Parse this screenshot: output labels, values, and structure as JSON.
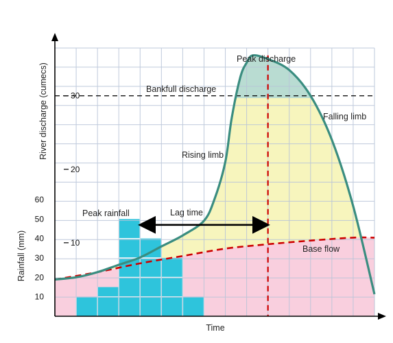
{
  "chart_data": {
    "type": "area",
    "xlabel": "Time",
    "ylabel_discharge": "River discharge (cumecs)",
    "ylabel_rainfall": "Rainfall (mm)",
    "discharge_ticks": [
      "10",
      "20",
      "30"
    ],
    "rainfall_ticks": [
      "10",
      "20",
      "30",
      "40",
      "50",
      "60"
    ],
    "x_range": [
      0,
      15
    ],
    "rainfall_ylim": [
      0,
      60
    ],
    "discharge_ylim": [
      0,
      36.5
    ],
    "grid": true,
    "rainfall": {
      "type": "bar",
      "x": [
        1,
        2,
        3,
        4,
        5,
        6,
        7
      ],
      "values": [
        10,
        15,
        50,
        40,
        30,
        10,
        0
      ]
    },
    "discharge": {
      "type": "line",
      "x": [
        0,
        1,
        2,
        3,
        4,
        5,
        6,
        7,
        7.5,
        8,
        8.3,
        8.7,
        9,
        9.3,
        10,
        11,
        12,
        13,
        14,
        15
      ],
      "values": [
        5,
        5.3,
        6,
        7,
        8,
        9.5,
        11,
        13,
        16,
        21,
        27,
        32.5,
        34.5,
        35.5,
        35,
        33.5,
        30,
        24,
        15,
        3
      ]
    },
    "base_flow": {
      "x": [
        0,
        2,
        4,
        6,
        8,
        10,
        12,
        14,
        15
      ],
      "values": [
        5,
        6,
        7.2,
        8.2,
        9.2,
        9.8,
        10.3,
        10.7,
        10.7
      ]
    },
    "bankfull_value": 30,
    "peak_x": 10,
    "lag_from_x": 4,
    "lag_to_x": 10,
    "annotations": {
      "peak_discharge": "Peak discharge",
      "bankfull": "Bankfull discharge",
      "falling_limb": "Falling limb",
      "rising_limb": "Rising limb",
      "peak_rainfall": "Peak rainfall",
      "lag_time": "Lag time",
      "base_flow": "Base flow"
    },
    "colors": {
      "rain_bar": "#2ec4dc",
      "base_flow_fill": "#f9cfde",
      "storm_fill": "#f7f5bd",
      "above_bankfull_fill": "#b9dcd2",
      "hydrograph_line": "#3a8d80",
      "dashed_red": "#cc0000",
      "grid": "#b8c4d8"
    }
  }
}
